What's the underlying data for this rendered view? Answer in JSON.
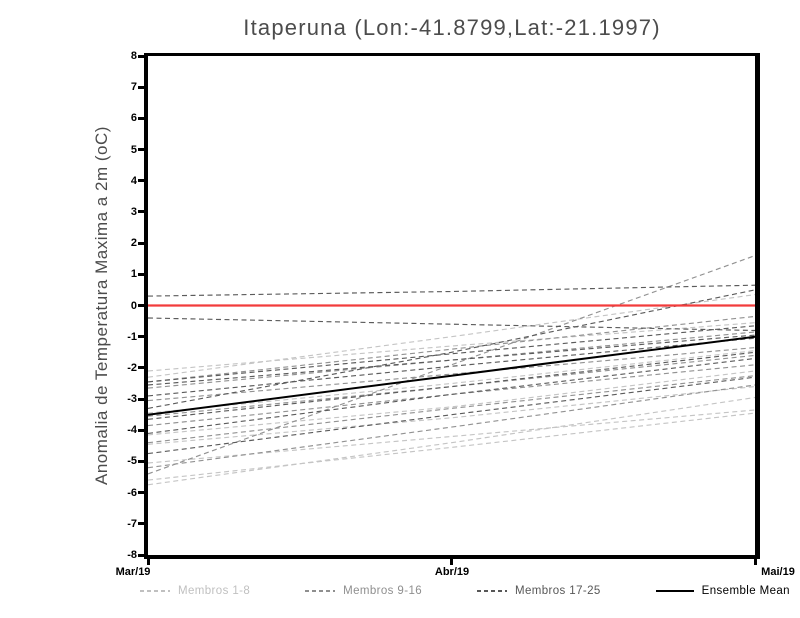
{
  "chart_data": {
    "type": "line",
    "title": "Itaperuna (Lon:-41.8799,Lat:-21.1997)",
    "ylabel": "Anomalia de Temperatura Maxima a 2m (oC)",
    "x_categories": [
      "Mar/19",
      "Abr/19",
      "Mai/19"
    ],
    "ylim": [
      -8,
      8
    ],
    "y_ticks": [
      8,
      7,
      6,
      5,
      4,
      3,
      2,
      1,
      0,
      -1,
      -2,
      -3,
      -4,
      -5,
      -6,
      -7,
      -8
    ],
    "grid": false,
    "legend_position": "bottom",
    "zero_line": {
      "value": 0,
      "color": "#f23c3c"
    },
    "groups": [
      {
        "name": "Membros 1-8",
        "color": "#c5c5c5",
        "line_style": "dashed",
        "members": [
          [
            -2.1,
            -1.3,
            -0.55
          ],
          [
            -2.3,
            -1.0,
            0.35
          ],
          [
            -3.45,
            -2.5,
            -1.45
          ],
          [
            -4.45,
            -3.6,
            -2.6
          ],
          [
            -5.05,
            -4.2,
            -3.35
          ],
          [
            -5.6,
            -4.55,
            -3.45
          ],
          [
            -5.75,
            -4.4,
            -2.95
          ],
          [
            -4.15,
            -3.25,
            -2.1
          ]
        ]
      },
      {
        "name": "Membros 9-16",
        "color": "#929292",
        "line_style": "dashed",
        "members": [
          [
            -5.4,
            -1.9,
            1.6
          ],
          [
            -2.65,
            -1.75,
            -0.85
          ],
          [
            -3.05,
            -2.2,
            -1.35
          ],
          [
            -3.55,
            -2.6,
            -1.6
          ],
          [
            -3.85,
            -2.85,
            -1.9
          ],
          [
            -4.4,
            -3.3,
            -2.25
          ],
          [
            -5.2,
            -3.9,
            -2.55
          ],
          [
            -2.45,
            -1.4,
            -0.35
          ]
        ]
      },
      {
        "name": "Membros 17-25",
        "color": "#5b5b5b",
        "line_style": "dashed",
        "members": [
          [
            0.3,
            0.45,
            0.65
          ],
          [
            -0.4,
            -0.6,
            -0.8
          ],
          [
            -2.45,
            -1.55,
            -0.65
          ],
          [
            -2.55,
            -1.75,
            -0.95
          ],
          [
            -2.9,
            -1.95,
            -1.05
          ],
          [
            -3.3,
            -1.5,
            0.5
          ],
          [
            -3.65,
            -2.6,
            -1.5
          ],
          [
            -4.75,
            -3.5,
            -2.3
          ],
          [
            -4.1,
            -2.85,
            -1.7
          ]
        ]
      }
    ],
    "ensemble_mean": {
      "name": "Ensemble Mean",
      "color": "#000000",
      "line_style": "solid",
      "values": [
        -3.5,
        -2.25,
        -1.0
      ]
    }
  },
  "legend": {
    "items": [
      {
        "label": "Membros 1-8",
        "color": "#c0c0c0",
        "style": "dashed"
      },
      {
        "label": "Membros 9-16",
        "color": "#8f8f8f",
        "style": "dashed"
      },
      {
        "label": "Membros 17-25",
        "color": "#575757",
        "style": "dashed"
      },
      {
        "label": "Ensemble Mean",
        "color": "#000000",
        "style": "solid"
      }
    ]
  }
}
